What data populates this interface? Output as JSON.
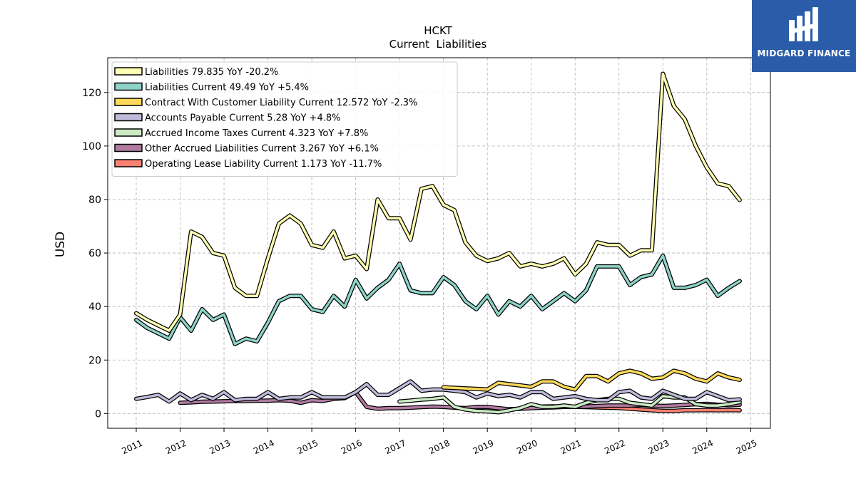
{
  "logo": {
    "text": "MIDGARD FINANCE",
    "bg_color": "#2a5caa",
    "icon": "midgard-logo-icon"
  },
  "chart_data": {
    "type": "line",
    "title": "HCKT",
    "subtitle": "Current  Liabilities",
    "ylabel": "USD",
    "xlabel": "",
    "xlim": [
      2010.35,
      2025.45
    ],
    "ylim": [
      -5.5,
      133
    ],
    "x_ticks": [
      "2011",
      "2012",
      "2013",
      "2014",
      "2015",
      "2016",
      "2017",
      "2018",
      "2019",
      "2020",
      "2021",
      "2022",
      "2023",
      "2024",
      "2025"
    ],
    "y_ticks": [
      0,
      20,
      40,
      60,
      80,
      100,
      120
    ],
    "grid": true,
    "legend_position": "top-left",
    "series": [
      {
        "name": "Liabilities  79.835 YoY -20.2%",
        "color": "#ffffb3",
        "x": [
          2011.0,
          2011.25,
          2011.5,
          2011.75,
          2012.0,
          2012.25,
          2012.5,
          2012.75,
          2013.0,
          2013.25,
          2013.5,
          2013.75,
          2014.0,
          2014.25,
          2014.5,
          2014.75,
          2015.0,
          2015.25,
          2015.5,
          2015.75,
          2016.0,
          2016.25,
          2016.5,
          2016.75,
          2017.0,
          2017.25,
          2017.5,
          2017.75,
          2018.0,
          2018.25,
          2018.5,
          2018.75,
          2019.0,
          2019.25,
          2019.5,
          2019.75,
          2020.0,
          2020.25,
          2020.5,
          2020.75,
          2021.0,
          2021.25,
          2021.5,
          2021.75,
          2022.0,
          2022.25,
          2022.5,
          2022.75,
          2023.0,
          2023.25,
          2023.5,
          2023.75,
          2024.0,
          2024.25,
          2024.5,
          2024.75
        ],
        "values": [
          37.5,
          35,
          33,
          31,
          37,
          68,
          66,
          60,
          59,
          47,
          44,
          44,
          58,
          71,
          74,
          71,
          63,
          62,
          68,
          58,
          59,
          54,
          80,
          73,
          73,
          65,
          84,
          85,
          78,
          76,
          64,
          59,
          57,
          58,
          60,
          55,
          56,
          55,
          56,
          58,
          52,
          56,
          64,
          63,
          63,
          59,
          61,
          61,
          127,
          115,
          110,
          100,
          92,
          86,
          85,
          79.8
        ]
      },
      {
        "name": "Liabilities Current  49.49 YoY +5.4%",
        "color": "#8dd3c7",
        "x": [
          2011.0,
          2011.25,
          2011.5,
          2011.75,
          2012.0,
          2012.25,
          2012.5,
          2012.75,
          2013.0,
          2013.25,
          2013.5,
          2013.75,
          2014.0,
          2014.25,
          2014.5,
          2014.75,
          2015.0,
          2015.25,
          2015.5,
          2015.75,
          2016.0,
          2016.25,
          2016.5,
          2016.75,
          2017.0,
          2017.25,
          2017.5,
          2017.75,
          2018.0,
          2018.25,
          2018.5,
          2018.75,
          2019.0,
          2019.25,
          2019.5,
          2019.75,
          2020.0,
          2020.25,
          2020.5,
          2020.75,
          2021.0,
          2021.25,
          2021.5,
          2021.75,
          2022.0,
          2022.25,
          2022.5,
          2022.75,
          2023.0,
          2023.25,
          2023.5,
          2023.75,
          2024.0,
          2024.25,
          2024.5,
          2024.75
        ],
        "values": [
          35,
          32,
          30,
          28,
          36,
          31,
          39,
          35,
          37,
          26,
          28,
          27,
          34,
          42,
          44,
          44,
          39,
          38,
          44,
          40,
          50,
          43,
          47,
          50,
          56,
          46,
          45,
          45,
          51,
          48,
          42,
          39,
          44,
          37,
          42,
          40,
          44,
          39,
          42,
          45,
          42,
          46,
          55,
          55,
          55,
          48,
          51,
          52,
          59,
          47,
          47,
          48,
          50,
          44,
          47,
          49.5
        ]
      },
      {
        "name": "Contract With Customer Liability Current  12.572 YoY -2.3%",
        "color": "#fed95a",
        "x": [
          2018.0,
          2018.25,
          2018.5,
          2018.75,
          2019.0,
          2019.25,
          2019.5,
          2019.75,
          2020.0,
          2020.25,
          2020.5,
          2020.75,
          2021.0,
          2021.25,
          2021.5,
          2021.75,
          2022.0,
          2022.25,
          2022.5,
          2022.75,
          2023.0,
          2023.25,
          2023.5,
          2023.75,
          2024.0,
          2024.25,
          2024.5,
          2024.75
        ],
        "values": [
          9.8,
          9.6,
          9.4,
          9.2,
          9,
          11.5,
          11,
          10.5,
          10,
          12,
          12,
          10,
          9,
          14,
          14,
          12,
          15,
          16,
          15,
          13,
          13.5,
          16,
          15,
          13,
          12,
          15,
          13.5,
          12.6
        ]
      },
      {
        "name": "Accounts Payable Current  5.28 YoY +4.8%",
        "color": "#bebada",
        "x": [
          2011.0,
          2011.25,
          2011.5,
          2011.75,
          2012.0,
          2012.25,
          2012.5,
          2012.75,
          2013.0,
          2013.25,
          2013.5,
          2013.75,
          2014.0,
          2014.25,
          2014.5,
          2014.75,
          2015.0,
          2015.25,
          2015.5,
          2015.75,
          2016.0,
          2016.25,
          2016.5,
          2016.75,
          2017.0,
          2017.25,
          2017.5,
          2017.75,
          2018.0,
          2018.25,
          2018.5,
          2018.75,
          2019.0,
          2019.25,
          2019.5,
          2019.75,
          2020.0,
          2020.25,
          2020.5,
          2020.75,
          2021.0,
          2021.25,
          2021.5,
          2021.75,
          2022.0,
          2022.25,
          2022.5,
          2022.75,
          2023.0,
          2023.25,
          2023.5,
          2023.75,
          2024.0,
          2024.25,
          2024.5,
          2024.75
        ],
        "values": [
          5.5,
          6.2,
          7,
          4.5,
          7.5,
          5,
          7,
          5.5,
          8,
          5,
          5.5,
          5.5,
          8,
          5.5,
          6,
          6,
          8,
          6,
          6,
          6,
          8,
          11,
          7,
          7,
          9.5,
          12,
          8.5,
          9,
          9,
          8.5,
          8,
          6,
          7.5,
          6.5,
          7,
          6,
          8,
          8,
          5.5,
          6,
          6.5,
          5.5,
          5,
          5,
          8,
          8.5,
          6,
          5.5,
          8.5,
          7,
          5.5,
          5.5,
          8,
          6.5,
          5,
          5.3
        ]
      },
      {
        "name": "Accrued Income Taxes Current  4.323 YoY +7.8%",
        "color": "#ccebc5",
        "x": [
          2017.0,
          2017.25,
          2017.5,
          2017.75,
          2018.0,
          2018.25,
          2018.5,
          2018.75,
          2019.0,
          2019.25,
          2019.5,
          2019.75,
          2020.0,
          2020.25,
          2020.5,
          2020.75,
          2021.0,
          2021.25,
          2021.5,
          2021.75,
          2022.0,
          2022.25,
          2022.5,
          2022.75,
          2023.0,
          2023.25,
          2023.5,
          2023.75,
          2024.0,
          2024.25,
          2024.5,
          2024.75
        ],
        "values": [
          4.5,
          4.8,
          5.2,
          5.5,
          6,
          2.5,
          1.5,
          1,
          0.8,
          0.5,
          1.2,
          2,
          3.5,
          2.5,
          2.5,
          3,
          2.5,
          4,
          5,
          5.5,
          5.5,
          4,
          3.5,
          3,
          6.5,
          6,
          6,
          3.5,
          3,
          3,
          3.5,
          4.3
        ]
      },
      {
        "name": "Other Accrued Liabilities Current  3.267 YoY +6.1%",
        "color": "#b07aa1",
        "x": [
          2012.0,
          2012.25,
          2012.5,
          2012.75,
          2013.0,
          2013.25,
          2013.5,
          2013.75,
          2014.0,
          2014.25,
          2014.5,
          2014.75,
          2015.0,
          2015.25,
          2015.5,
          2015.75,
          2016.0,
          2016.25,
          2016.5,
          2016.75,
          2017.0,
          2017.25,
          2017.5,
          2017.75,
          2018.0,
          2018.25,
          2018.5,
          2018.75,
          2019.0,
          2019.25,
          2019.5,
          2019.75,
          2020.0,
          2020.25,
          2020.5,
          2020.75,
          2021.0,
          2021.25,
          2021.5,
          2021.75,
          2022.0,
          2022.25,
          2022.5,
          2022.75,
          2023.0,
          2023.25,
          2023.5,
          2023.75,
          2024.0,
          2024.25,
          2024.5,
          2024.75
        ],
        "values": [
          4,
          4.2,
          4.4,
          4.5,
          4.6,
          4.7,
          4.7,
          4.8,
          4.8,
          5,
          4.8,
          4,
          5,
          4.7,
          5.5,
          5.8,
          8,
          2.5,
          1.8,
          2,
          2,
          2.2,
          2.4,
          2.6,
          2.5,
          2.2,
          2,
          2.5,
          2.5,
          2,
          1.6,
          1.8,
          2,
          2.2,
          2.3,
          2.5,
          2.5,
          2.6,
          2.8,
          3,
          3,
          3,
          3.2,
          3,
          2.8,
          3,
          3.2,
          3.5,
          3.6,
          3.3,
          3.1,
          3.3
        ]
      },
      {
        "name": "Operating Lease Liability Current  1.173 YoY -11.7%",
        "color": "#fb8072",
        "x": [
          2020.0,
          2020.25,
          2020.5,
          2020.75,
          2021.0,
          2021.25,
          2021.5,
          2021.75,
          2022.0,
          2022.25,
          2022.5,
          2022.75,
          2023.0,
          2023.25,
          2023.5,
          2023.75,
          2024.0,
          2024.25,
          2024.5,
          2024.75
        ],
        "values": [
          2.6,
          2.6,
          2.7,
          2.6,
          2.5,
          2.4,
          2.3,
          2.2,
          2.1,
          1.8,
          1.5,
          1.2,
          1,
          1,
          1.2,
          1.2,
          1.3,
          1.2,
          1.3,
          1.2
        ]
      }
    ]
  }
}
